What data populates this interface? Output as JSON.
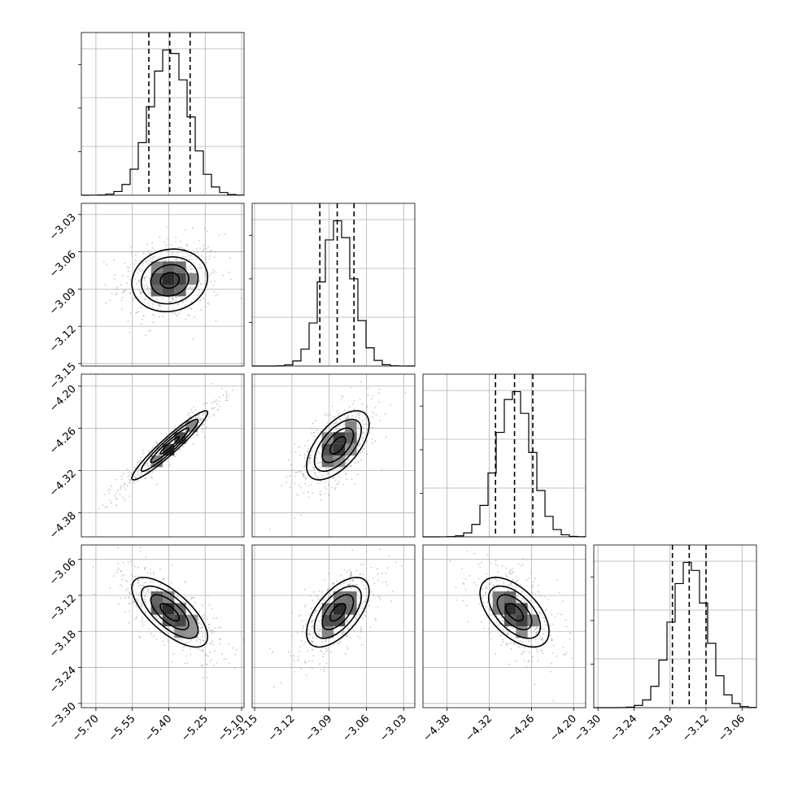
{
  "chart_data": {
    "type": "corner",
    "parameters": [
      {
        "range": [
          -5.76,
          -5.09
        ],
        "ticks": [
          -5.7,
          -5.55,
          -5.4,
          -5.25,
          -5.1
        ],
        "tick_labels": [
          "−5.70",
          "−5.55",
          "−5.40",
          "−5.25",
          "−5.10"
        ],
        "mean": -5.396,
        "sigma": 0.078,
        "quantiles": [
          -5.482,
          -5.396,
          -5.312
        ]
      },
      {
        "range": [
          -3.152,
          -3.021
        ],
        "ticks": [
          -3.15,
          -3.12,
          -3.09,
          -3.06,
          -3.03
        ],
        "tick_labels": [
          "−3.15",
          "−3.12",
          "−3.09",
          "−3.06",
          "−3.03"
        ],
        "mean": -3.083,
        "sigma": 0.0126,
        "quantiles": [
          -3.0975,
          -3.0835,
          -3.07
        ]
      },
      {
        "range": [
          -4.414,
          -4.183
        ],
        "ticks": [
          -4.38,
          -4.32,
          -4.26,
          -4.2
        ],
        "tick_labels": [
          "−4.38",
          "−4.32",
          "−4.26",
          "−4.20"
        ],
        "mean": -4.284,
        "sigma": 0.0245,
        "quantiles": [
          -4.311,
          -4.284,
          -4.258
        ]
      },
      {
        "range": [
          -3.307,
          -3.036
        ],
        "ticks": [
          -3.3,
          -3.24,
          -3.18,
          -3.12,
          -3.06
        ],
        "tick_labels": [
          "−3.30",
          "−3.24",
          "−3.18",
          "−3.12",
          "−3.06"
        ],
        "mean": -3.148,
        "sigma": 0.029,
        "quantiles": [
          -3.176,
          -3.148,
          -3.12
        ]
      }
    ],
    "correlations": [
      [
        1.0,
        0.1,
        0.95,
        -0.7
      ],
      [
        0.1,
        1.0,
        0.6,
        0.6
      ],
      [
        0.95,
        0.6,
        1.0,
        -0.55
      ],
      [
        -0.7,
        0.6,
        -0.55,
        1.0
      ]
    ],
    "contour_levels_sigma": [
      0.5,
      1.0,
      1.5,
      2.0
    ],
    "histogram_bins": 20,
    "scatter_points_per_panel": 500,
    "title": "",
    "colors": {
      "density": "#000000",
      "points": "#9a9a9a",
      "grid": "#b0b0b0",
      "frame": "#000000"
    },
    "grid": true,
    "xlabel": "",
    "ylabel": ""
  }
}
